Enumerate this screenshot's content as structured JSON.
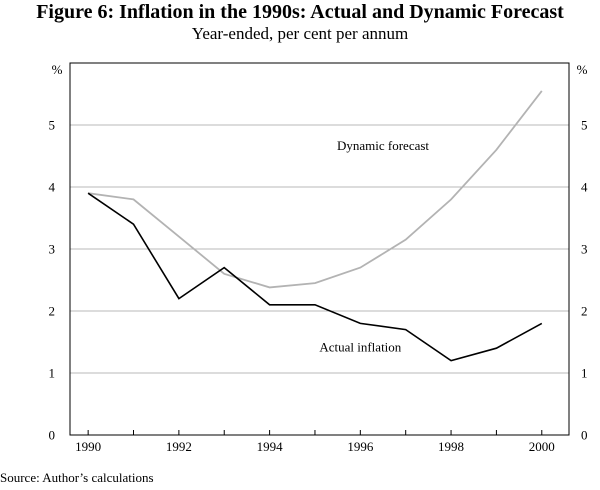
{
  "title": "Figure 6: Inflation in the 1990s: Actual and Dynamic Forecast",
  "subtitle": "Year-ended, per cent per annum",
  "source": "Source: Author’s calculations",
  "chart_data": {
    "type": "line",
    "title": "Figure 6: Inflation in the 1990s: Actual and Dynamic Forecast",
    "subtitle": "Year-ended, per cent per annum",
    "xlabel": "",
    "ylabel": "%",
    "ylabel_right": "%",
    "xlim": [
      1989.6,
      2000.6
    ],
    "ylim": [
      0,
      6
    ],
    "x_ticks": [
      1990,
      1992,
      1994,
      1996,
      1998,
      2000
    ],
    "y_ticks": [
      0,
      1,
      2,
      3,
      4,
      5
    ],
    "gridlines": true,
    "x": [
      1990,
      1991,
      1992,
      1993,
      1994,
      1995,
      1996,
      1997,
      1998,
      1999,
      2000
    ],
    "series": [
      {
        "name": "Actual inflation",
        "color": "#000000",
        "values": [
          3.9,
          3.4,
          2.2,
          2.7,
          2.1,
          2.1,
          1.8,
          1.7,
          1.2,
          1.4,
          1.8
        ]
      },
      {
        "name": "Dynamic forecast",
        "color": "#b3b3b3",
        "values": [
          3.9,
          3.8,
          3.2,
          2.6,
          2.38,
          2.45,
          2.7,
          3.15,
          3.8,
          4.6,
          5.55
        ]
      }
    ],
    "annotations": [
      {
        "text": "Dynamic forecast",
        "series": "Dynamic forecast",
        "x": 1996.5,
        "y": 4.6
      },
      {
        "text": "Actual inflation",
        "series": "Actual inflation",
        "x": 1996,
        "y": 1.35
      }
    ]
  }
}
